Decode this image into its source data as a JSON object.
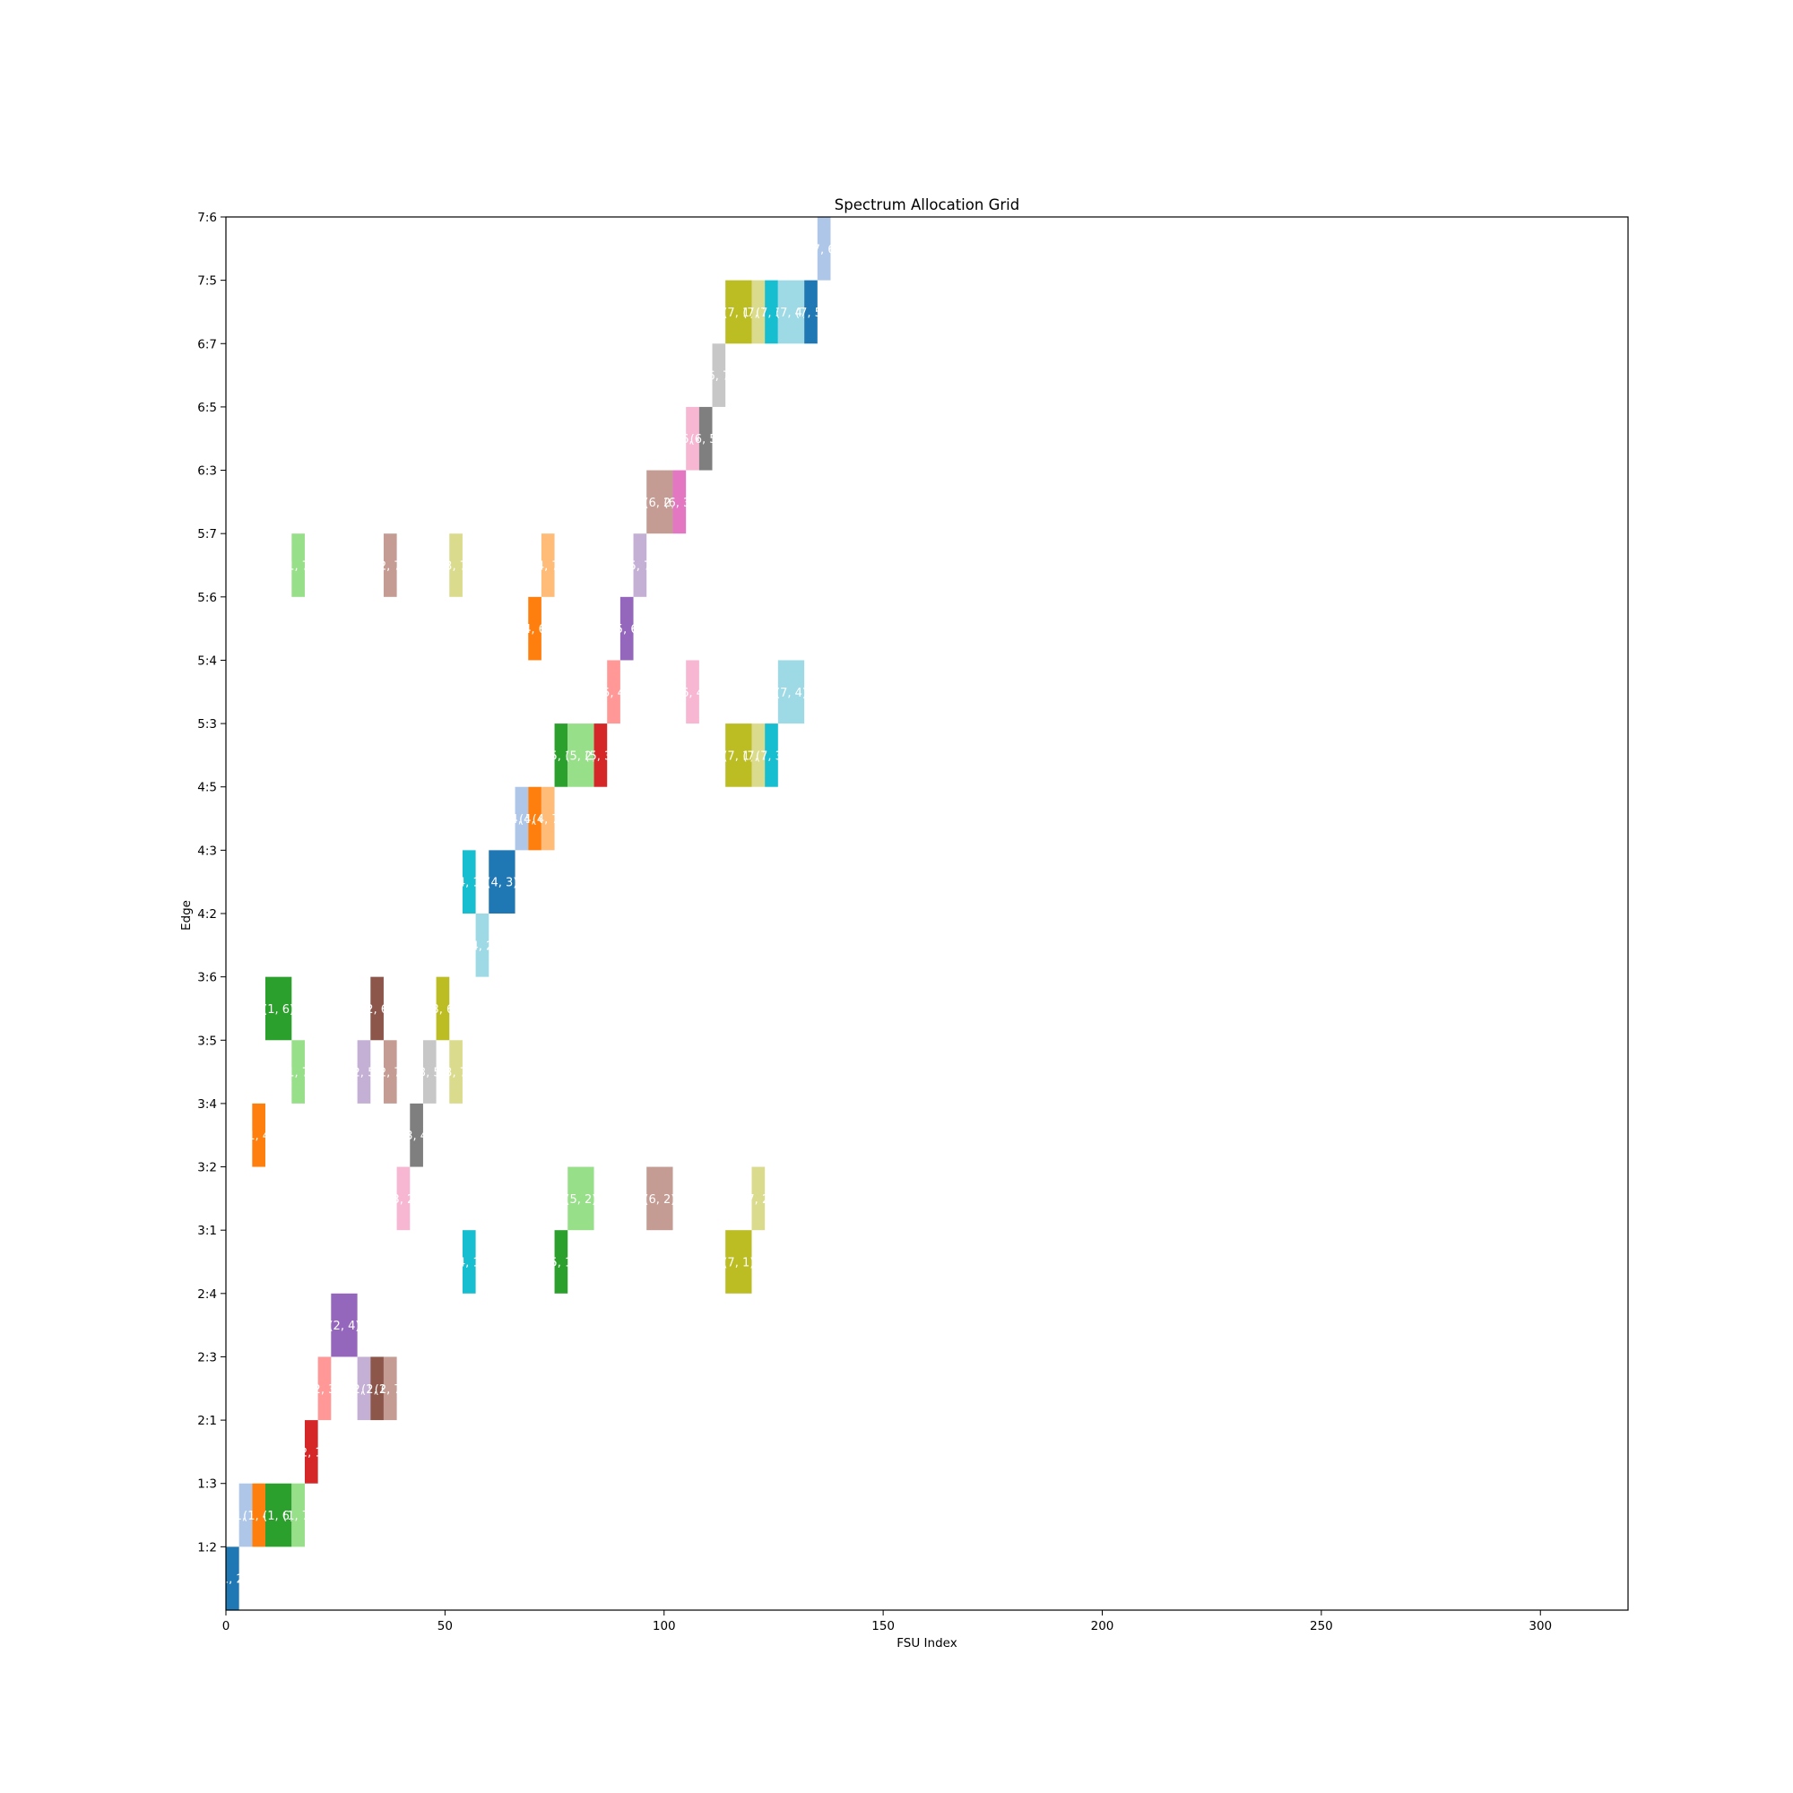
{
  "chart_data": {
    "type": "heatmap",
    "title": "Spectrum Allocation Grid",
    "xlabel": "FSU Index",
    "ylabel": "Edge",
    "xlim": [
      0,
      320
    ],
    "x_ticks": [
      0,
      50,
      100,
      150,
      200,
      250,
      300
    ],
    "y_categories": [
      "1:2",
      "1:3",
      "2:1",
      "2:3",
      "2:4",
      "3:1",
      "3:2",
      "3:4",
      "3:5",
      "3:6",
      "4:2",
      "4:3",
      "4:5",
      "5:3",
      "5:4",
      "5:6",
      "5:7",
      "6:3",
      "6:5",
      "6:7",
      "7:5",
      "7:6"
    ],
    "y_tick_labels": [
      "1:2",
      "1:3",
      "2:1",
      "2:3",
      "2:4",
      "3:1",
      "3:2",
      "3:4",
      "3:5",
      "3:6",
      "4:2",
      "4:3",
      "4:5",
      "5:3",
      "5:4",
      "5:6",
      "5:7",
      "6:3",
      "6:5",
      "6:7",
      "7:5",
      "7:6"
    ],
    "grid": false,
    "legend": "none",
    "blocks": [
      {
        "start": 0,
        "end": 3,
        "row": 0,
        "color": "#1f77b4",
        "label": "(1, 2)"
      },
      {
        "start": 3,
        "end": 6,
        "row": 1,
        "color": "#aec7e8",
        "label": "(1, 3)"
      },
      {
        "start": 6,
        "end": 9,
        "row": 1,
        "color": "#ff7f0e",
        "label": "(1, 4)"
      },
      {
        "start": 9,
        "end": 15,
        "row": 1,
        "color": "#2ca02c",
        "label": "(1, 6)"
      },
      {
        "start": 15,
        "end": 18,
        "row": 1,
        "color": "#98df8a",
        "label": "(1, 7)"
      },
      {
        "start": 6,
        "end": 9,
        "row": 7,
        "color": "#ff7f0e",
        "label": "(1, 4)"
      },
      {
        "start": 9,
        "end": 15,
        "row": 9,
        "color": "#2ca02c",
        "label": "(1, 6)"
      },
      {
        "start": 15,
        "end": 18,
        "row": 8,
        "color": "#98df8a",
        "label": "(1, 7)"
      },
      {
        "start": 15,
        "end": 18,
        "row": 16,
        "color": "#98df8a",
        "label": "(1, 7)"
      },
      {
        "start": 18,
        "end": 21,
        "row": 2,
        "color": "#d62728",
        "label": "(2, 1)"
      },
      {
        "start": 21,
        "end": 24,
        "row": 3,
        "color": "#ff9896",
        "label": "(2, 3)"
      },
      {
        "start": 24,
        "end": 30,
        "row": 4,
        "color": "#9467bd",
        "label": "(2, 4)"
      },
      {
        "start": 30,
        "end": 33,
        "row": 3,
        "color": "#c5b0d5",
        "label": "(2, 5)"
      },
      {
        "start": 33,
        "end": 36,
        "row": 3,
        "color": "#8c564b",
        "label": "(2, 6)"
      },
      {
        "start": 36,
        "end": 39,
        "row": 3,
        "color": "#c49c94",
        "label": "(2, 7)"
      },
      {
        "start": 30,
        "end": 33,
        "row": 8,
        "color": "#c5b0d5",
        "label": "(2, 5)"
      },
      {
        "start": 33,
        "end": 36,
        "row": 9,
        "color": "#8c564b",
        "label": "(2, 6)"
      },
      {
        "start": 36,
        "end": 39,
        "row": 8,
        "color": "#c49c94",
        "label": "(2, 7)"
      },
      {
        "start": 36,
        "end": 39,
        "row": 16,
        "color": "#c49c94",
        "label": "(2, 7)"
      },
      {
        "start": 39,
        "end": 42,
        "row": 6,
        "color": "#f7b6d2",
        "label": "(3, 2)"
      },
      {
        "start": 42,
        "end": 45,
        "row": 7,
        "color": "#7f7f7f",
        "label": "(3, 4)"
      },
      {
        "start": 45,
        "end": 48,
        "row": 8,
        "color": "#c7c7c7",
        "label": "(3, 5)"
      },
      {
        "start": 48,
        "end": 51,
        "row": 9,
        "color": "#bcbd22",
        "label": "(3, 6)"
      },
      {
        "start": 51,
        "end": 54,
        "row": 8,
        "color": "#dbdb8d",
        "label": "(3, 7)"
      },
      {
        "start": 51,
        "end": 54,
        "row": 16,
        "color": "#dbdb8d",
        "label": "(3, 7)"
      },
      {
        "start": 54,
        "end": 57,
        "row": 5,
        "color": "#17becf",
        "label": "(4, 1)"
      },
      {
        "start": 54,
        "end": 57,
        "row": 11,
        "color": "#17becf",
        "label": "(4, 1)"
      },
      {
        "start": 57,
        "end": 60,
        "row": 10,
        "color": "#9edae5",
        "label": "(4, 2)"
      },
      {
        "start": 60,
        "end": 66,
        "row": 11,
        "color": "#1f77b4",
        "label": "(4, 3)"
      },
      {
        "start": 66,
        "end": 69,
        "row": 12,
        "color": "#aec7e8",
        "label": "(4, 5)"
      },
      {
        "start": 69,
        "end": 72,
        "row": 12,
        "color": "#ff7f0e",
        "label": "(4, 6)"
      },
      {
        "start": 72,
        "end": 75,
        "row": 12,
        "color": "#ffbb78",
        "label": "(4, 7)"
      },
      {
        "start": 69,
        "end": 72,
        "row": 15,
        "color": "#ff7f0e",
        "label": "(4, 6)"
      },
      {
        "start": 72,
        "end": 75,
        "row": 16,
        "color": "#ffbb78",
        "label": "(4, 7)"
      },
      {
        "start": 75,
        "end": 78,
        "row": 5,
        "color": "#2ca02c",
        "label": "(5, 1)"
      },
      {
        "start": 75,
        "end": 78,
        "row": 13,
        "color": "#2ca02c",
        "label": "(5, 1)"
      },
      {
        "start": 78,
        "end": 84,
        "row": 6,
        "color": "#98df8a",
        "label": "(5, 2)"
      },
      {
        "start": 78,
        "end": 84,
        "row": 13,
        "color": "#98df8a",
        "label": "(5, 2)"
      },
      {
        "start": 84,
        "end": 87,
        "row": 13,
        "color": "#d62728",
        "label": "(5, 3)"
      },
      {
        "start": 87,
        "end": 90,
        "row": 14,
        "color": "#ff9896",
        "label": "(5, 4)"
      },
      {
        "start": 90,
        "end": 93,
        "row": 15,
        "color": "#9467bd",
        "label": "(5, 6)"
      },
      {
        "start": 93,
        "end": 96,
        "row": 16,
        "color": "#c5b0d5",
        "label": "(5, 7)"
      },
      {
        "start": 96,
        "end": 102,
        "row": 6,
        "color": "#c49c94",
        "label": "(6, 2)"
      },
      {
        "start": 96,
        "end": 102,
        "row": 17,
        "color": "#c49c94",
        "label": "(6, 2)"
      },
      {
        "start": 102,
        "end": 105,
        "row": 17,
        "color": "#e377c2",
        "label": "(6, 3)"
      },
      {
        "start": 105,
        "end": 108,
        "row": 14,
        "color": "#f7b6d2",
        "label": "(6, 4)"
      },
      {
        "start": 105,
        "end": 108,
        "row": 18,
        "color": "#f7b6d2",
        "label": "(6, 4)"
      },
      {
        "start": 108,
        "end": 111,
        "row": 18,
        "color": "#7f7f7f",
        "label": "(6, 5)"
      },
      {
        "start": 111,
        "end": 114,
        "row": 19,
        "color": "#c7c7c7",
        "label": "(6, 7)"
      },
      {
        "start": 114,
        "end": 120,
        "row": 5,
        "color": "#bcbd22",
        "label": "(7, 1)"
      },
      {
        "start": 114,
        "end": 120,
        "row": 13,
        "color": "#bcbd22",
        "label": "(7, 1)"
      },
      {
        "start": 114,
        "end": 120,
        "row": 20,
        "color": "#bcbd22",
        "label": "(7, 1)"
      },
      {
        "start": 120,
        "end": 123,
        "row": 6,
        "color": "#dbdb8d",
        "label": "(7, 2)"
      },
      {
        "start": 120,
        "end": 123,
        "row": 13,
        "color": "#dbdb8d",
        "label": "(7, 2)"
      },
      {
        "start": 120,
        "end": 123,
        "row": 20,
        "color": "#dbdb8d",
        "label": "(7, 2)"
      },
      {
        "start": 123,
        "end": 126,
        "row": 13,
        "color": "#17becf",
        "label": "(7, 3)"
      },
      {
        "start": 123,
        "end": 126,
        "row": 20,
        "color": "#17becf",
        "label": "(7, 3)"
      },
      {
        "start": 126,
        "end": 132,
        "row": 14,
        "color": "#9edae5",
        "label": "(7, 4)"
      },
      {
        "start": 126,
        "end": 132,
        "row": 20,
        "color": "#9edae5",
        "label": "(7, 4)"
      },
      {
        "start": 132,
        "end": 135,
        "row": 20,
        "color": "#1f77b4",
        "label": "(7, 5)"
      },
      {
        "start": 135,
        "end": 138,
        "row": 21,
        "color": "#aec7e8",
        "label": "(7, 6)"
      }
    ]
  }
}
